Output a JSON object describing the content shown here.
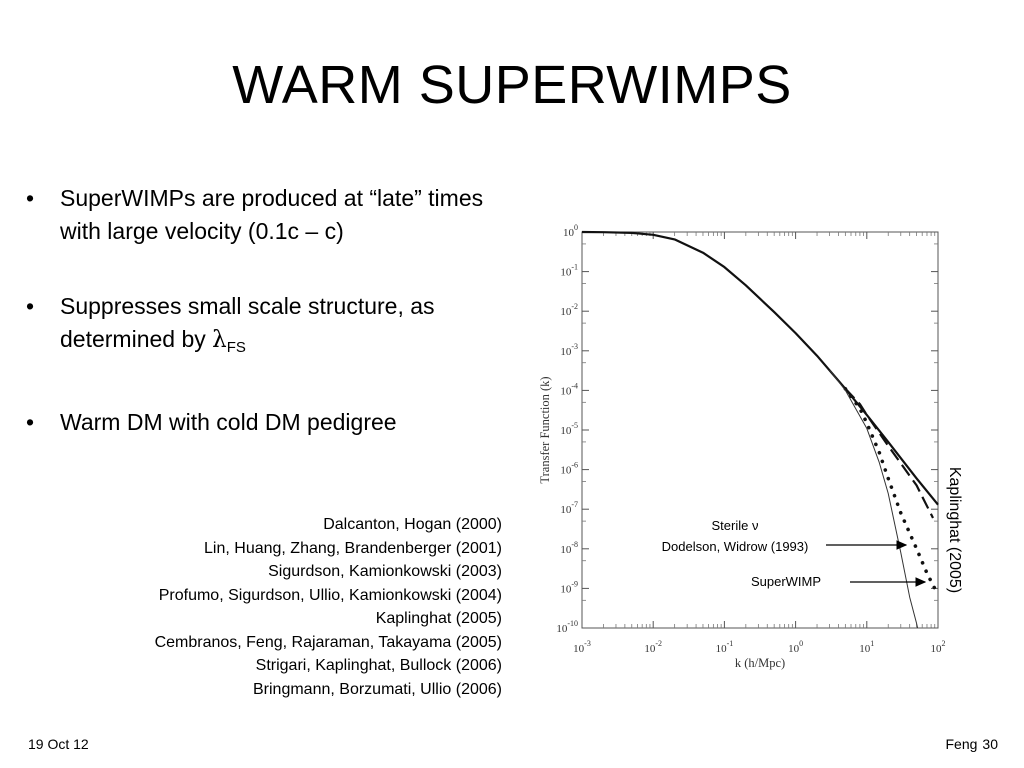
{
  "slide": {
    "title": "WARM SUPERWIMPS",
    "bullet_marker": "•",
    "bullets": [
      {
        "text": "SuperWIMPs are produced at “late” times with large velocity (0.1c – c)"
      },
      {
        "text_before": "Suppresses small scale structure, as determined by ",
        "symbol": "λ",
        "subscript": "FS"
      },
      {
        "text": "Warm DM with cold DM pedigree"
      }
    ],
    "references": [
      "Dalcanton, Hogan (2000)",
      "Lin, Huang, Zhang, Brandenberger (2001)",
      "Sigurdson, Kamionkowski (2003)",
      "Profumo, Sigurdson, Ullio, Kamionkowski (2004)",
      "Kaplinghat (2005)",
      "Cembranos, Feng, Rajaraman, Takayama (2005)",
      "Strigari, Kaplinghat, Bullock (2006)",
      "Bringmann, Borzumati, Ullio (2006)"
    ],
    "footer": {
      "date": "19 Oct 12",
      "author": "Feng",
      "page": "30"
    }
  },
  "chart_data": {
    "type": "line",
    "title": "",
    "xlabel": "k (h/Mpc)",
    "ylabel": "Transfer Function (k)",
    "x_scale": "log",
    "y_scale": "log",
    "xlim": [
      0.001,
      100
    ],
    "ylim": [
      1e-10,
      1
    ],
    "x_ticks": [
      {
        "value": 0.001,
        "base": "10",
        "exp": "-3"
      },
      {
        "value": 0.01,
        "base": "10",
        "exp": "-2"
      },
      {
        "value": 0.1,
        "base": "10",
        "exp": "-1"
      },
      {
        "value": 1,
        "base": "10",
        "exp": "0"
      },
      {
        "value": 10,
        "base": "10",
        "exp": "1"
      },
      {
        "value": 100,
        "base": "10",
        "exp": "2"
      }
    ],
    "y_ticks": [
      {
        "value": 1,
        "base": "10",
        "exp": "0"
      },
      {
        "value": 0.1,
        "base": "10",
        "exp": "-1"
      },
      {
        "value": 0.01,
        "base": "10",
        "exp": "-2"
      },
      {
        "value": 0.001,
        "base": "10",
        "exp": "-3"
      },
      {
        "value": 0.0001,
        "base": "10",
        "exp": "-4"
      },
      {
        "value": 1e-05,
        "base": "10",
        "exp": "-5"
      },
      {
        "value": 1e-06,
        "base": "10",
        "exp": "-6"
      },
      {
        "value": 1e-07,
        "base": "10",
        "exp": "-7"
      },
      {
        "value": 1e-08,
        "base": "10",
        "exp": "-8"
      },
      {
        "value": 1e-09,
        "base": "10",
        "exp": "-9"
      },
      {
        "value": 1e-10,
        "base": "10",
        "exp": "-10"
      }
    ],
    "series": [
      {
        "style": "solid-thick",
        "x": [
          0.001,
          0.002,
          0.005,
          0.01,
          0.02,
          0.05,
          0.1,
          0.2,
          0.5,
          1,
          2,
          5,
          10,
          20,
          50,
          100
        ],
        "y": [
          1,
          0.99,
          0.95,
          0.85,
          0.65,
          0.3,
          0.13,
          0.045,
          0.0095,
          0.0028,
          0.00075,
          0.00011,
          2.4e-05,
          5e-06,
          6e-07,
          1.3e-07
        ]
      },
      {
        "style": "dashed",
        "x": [
          5,
          8,
          10,
          20,
          50,
          85
        ],
        "y": [
          0.00011,
          4.5e-05,
          2.4e-05,
          4e-06,
          4e-07,
          6e-08
        ]
      },
      {
        "style": "dotted",
        "x": [
          5,
          8,
          10,
          15,
          20,
          30,
          50,
          70,
          90
        ],
        "y": [
          0.00011,
          3.5e-05,
          1.5e-05,
          2.7e-06,
          6e-07,
          8e-08,
          1e-08,
          2.4e-09,
          1e-09
        ]
      },
      {
        "style": "solid-thin",
        "x": [
          3,
          5,
          10,
          15,
          20,
          30,
          40,
          50,
          60
        ],
        "y": [
          0.00033,
          0.0001,
          1.1e-05,
          1.5e-06,
          2.5e-07,
          8e-09,
          6e-10,
          1.3e-10,
          3e-11
        ]
      }
    ],
    "annotations": [
      {
        "label": "Sterile ν",
        "label2": "Dodelson, Widrow (1993)"
      },
      {
        "label": "SuperWIMP"
      },
      {
        "label": "Kaplinghat (2005)"
      }
    ]
  }
}
